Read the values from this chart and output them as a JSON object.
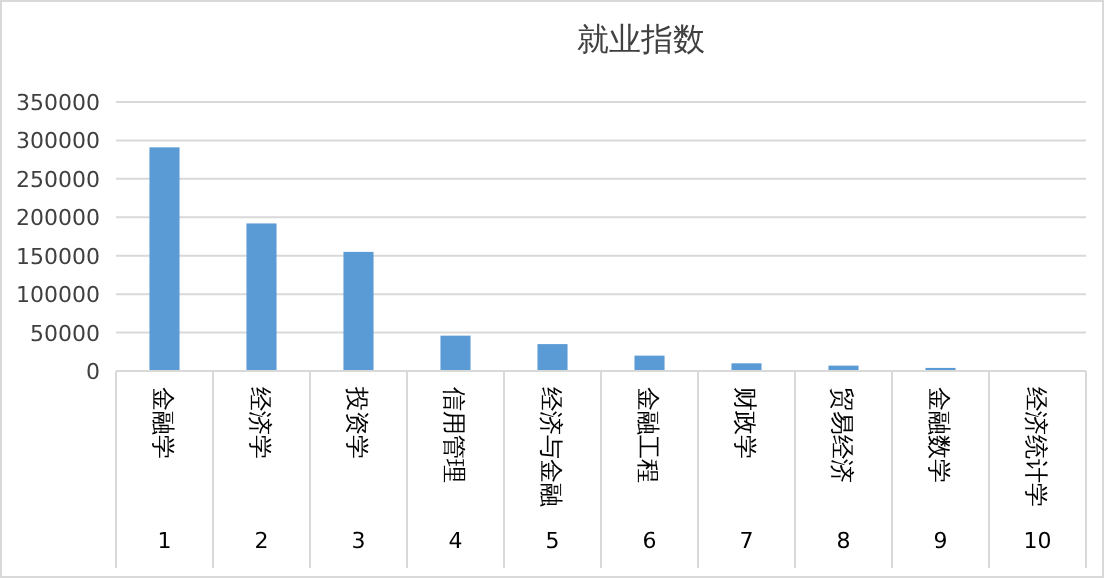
{
  "chart_data": {
    "type": "bar",
    "title": "就业指数",
    "categories": [
      "金融学",
      "经济学",
      "投资学",
      "信用管理",
      "经济与金融",
      "金融工程",
      "财政学",
      "贸易经济",
      "金融数学",
      "经济统计学"
    ],
    "annotations": [
      "1",
      "2",
      "3",
      "4",
      "5",
      "6",
      "7",
      "8",
      "9",
      "10"
    ],
    "values": [
      291000,
      192000,
      155000,
      46000,
      35000,
      20000,
      10000,
      7000,
      4000,
      null
    ],
    "color": "#5b9bd5",
    "ylim": [
      0,
      350000
    ],
    "yticks": [
      0,
      50000,
      100000,
      150000,
      200000,
      250000,
      300000,
      350000
    ],
    "grid": "y"
  }
}
